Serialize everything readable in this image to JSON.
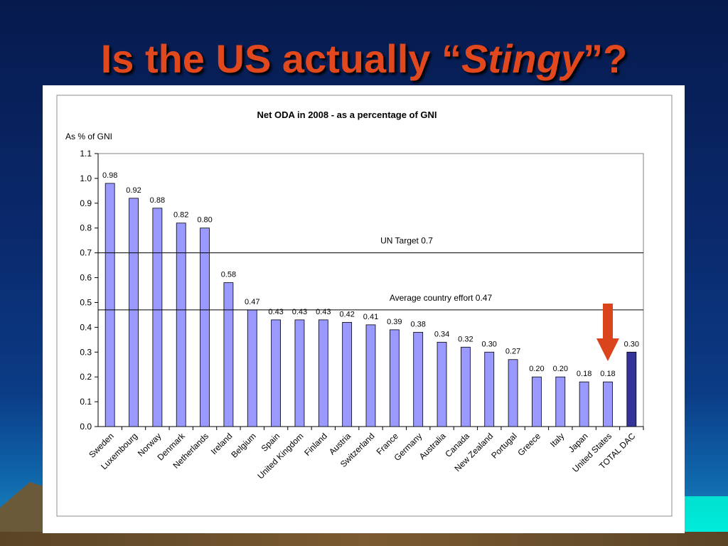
{
  "slide": {
    "title_prefix": "Is the US actually “",
    "title_emphasis": "Stingy",
    "title_suffix": "”?"
  },
  "colors": {
    "title": "#e2481d",
    "bar": "#9999ff",
    "bar_highlight": "#333399",
    "arrow": "#d9441c"
  },
  "chart_data": {
    "type": "bar",
    "title": "Net ODA  in 2008  - as a percentage  of GNI",
    "ylabel": "As % of GNI",
    "xlabel": "",
    "ylim": [
      0,
      1.1
    ],
    "yticks": [
      "0.0",
      "0.1",
      "0.2",
      "0.3",
      "0.4",
      "0.5",
      "0.6",
      "0.7",
      "0.8",
      "0.9",
      "1.0",
      "1.1"
    ],
    "grid": false,
    "categories": [
      "Sweden",
      "Luxembourg",
      "Norway",
      "Denmark",
      "Netherlands",
      "Ireland",
      "Belgium",
      "Spain",
      "United Kingdom",
      "Finland",
      "Austria",
      "Switzerland",
      "France",
      "Germany",
      "Australia",
      "Canada",
      "New Zealand",
      "Portugal",
      "Greece",
      "Italy",
      "Japan",
      "United States",
      "TOTAL DAC"
    ],
    "values": [
      0.98,
      0.92,
      0.88,
      0.82,
      0.8,
      0.58,
      0.47,
      0.43,
      0.43,
      0.43,
      0.42,
      0.41,
      0.39,
      0.38,
      0.34,
      0.32,
      0.3,
      0.27,
      0.2,
      0.2,
      0.18,
      0.18,
      0.3
    ],
    "labels": [
      "0.98",
      "0.92",
      "0.88",
      "0.82",
      "0.80",
      "0.58",
      "0.47",
      "0.43",
      "0.43",
      "0.43",
      "0.42",
      "0.41",
      "0.39",
      "0.38",
      "0.34",
      "0.32",
      "0.30",
      "0.27",
      "0.20",
      "0.20",
      "0.18",
      "0.18",
      "0.30"
    ],
    "highlight_category": "TOTAL DAC",
    "reference_lines": [
      {
        "value": 0.7,
        "label": "UN Target 0.7"
      },
      {
        "value": 0.47,
        "label": "Average country effort 0.47"
      }
    ],
    "annotation": {
      "type": "arrow-down",
      "target": "United States"
    }
  }
}
